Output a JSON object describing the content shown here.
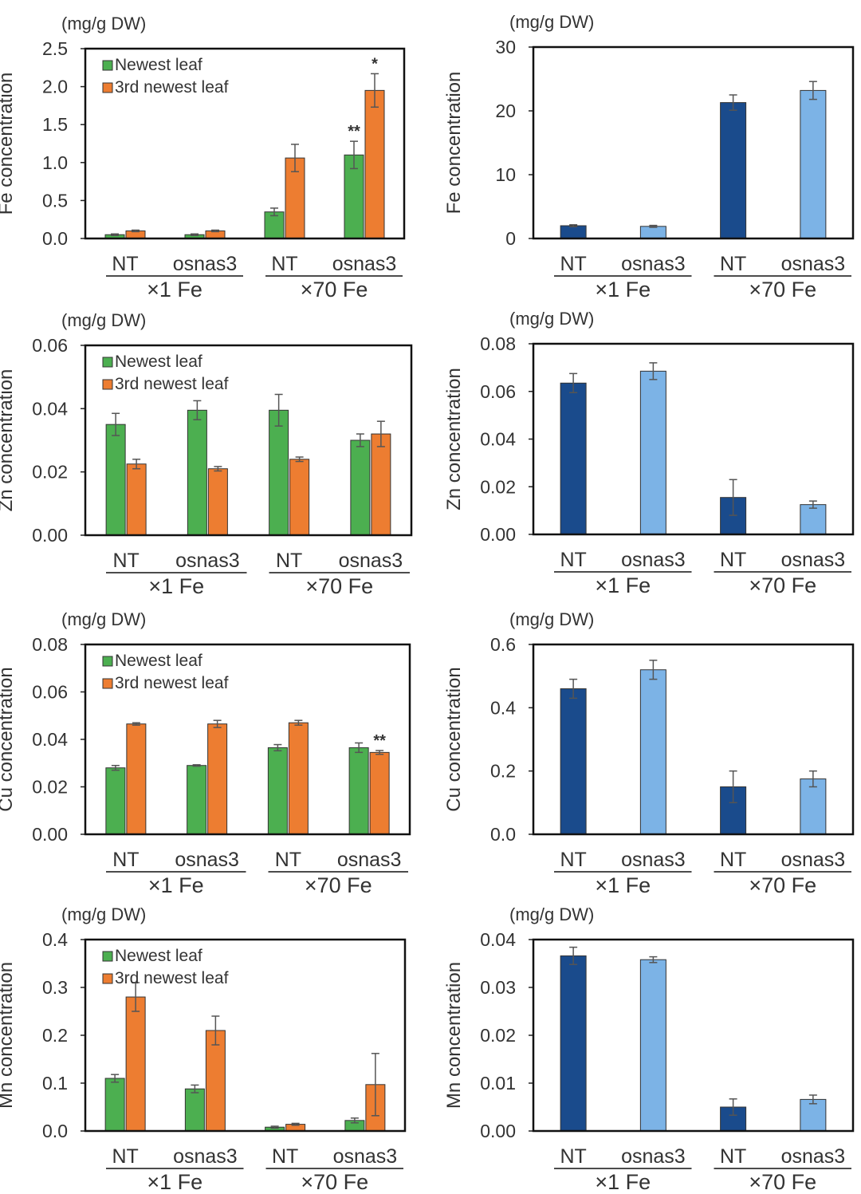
{
  "chart_data": [
    {
      "id": "fe-leaf",
      "type": "bar",
      "unit": "(mg/g DW)",
      "ylabel": "Fe concentration",
      "ylim": [
        0,
        2.5
      ],
      "yticks": [
        "0.0",
        "0.5",
        "1.0",
        "1.5",
        "2.0",
        "2.5"
      ],
      "categories": [
        "NT",
        "osnas3",
        "NT",
        "osnas3"
      ],
      "groups": [
        "×1 Fe",
        "×70 Fe"
      ],
      "legend": "top-left",
      "series": [
        {
          "name": "Newest leaf",
          "color": "#4caf50",
          "values": [
            0.05,
            0.05,
            0.35,
            1.1
          ],
          "errors": [
            0.01,
            0.01,
            0.05,
            0.18
          ],
          "marks": [
            "",
            "",
            "",
            "**"
          ]
        },
        {
          "name": "3rd newest leaf",
          "color": "#ed7d31",
          "values": [
            0.1,
            0.1,
            1.06,
            1.95
          ],
          "errors": [
            0.01,
            0.01,
            0.18,
            0.22
          ],
          "marks": [
            "",
            "",
            "",
            "*"
          ]
        }
      ]
    },
    {
      "id": "fe-other",
      "type": "bar",
      "unit": "(mg/g DW)",
      "ylabel": "Fe concentration",
      "ylim": [
        0,
        30
      ],
      "yticks": [
        "0",
        "10",
        "20",
        "30"
      ],
      "categories": [
        "NT",
        "osnas3",
        "NT",
        "osnas3"
      ],
      "groups": [
        "×1 Fe",
        "×70 Fe"
      ],
      "series": [
        {
          "colors": [
            "#1a4b8c",
            "#7cb3e6",
            "#1a4b8c",
            "#7cb3e6"
          ],
          "values": [
            2.0,
            1.9,
            21.3,
            23.2
          ],
          "errors": [
            0.15,
            0.15,
            1.2,
            1.4
          ]
        }
      ]
    },
    {
      "id": "zn-leaf",
      "type": "bar",
      "unit": "(mg/g DW)",
      "ylabel": "Zn concentration",
      "ylim": [
        0,
        0.06
      ],
      "yticks": [
        "0.00",
        "0.02",
        "0.04",
        "0.06"
      ],
      "categories": [
        "NT",
        "osnas3",
        "NT",
        "osnas3"
      ],
      "groups": [
        "×1 Fe",
        "×70 Fe"
      ],
      "legend": "top-left",
      "series": [
        {
          "name": "Newest leaf",
          "color": "#4caf50",
          "values": [
            0.035,
            0.0395,
            0.0395,
            0.03
          ],
          "errors": [
            0.0035,
            0.003,
            0.005,
            0.002
          ],
          "marks": [
            "",
            "",
            "",
            ""
          ]
        },
        {
          "name": "3rd newest leaf",
          "color": "#ed7d31",
          "values": [
            0.0225,
            0.021,
            0.024,
            0.032
          ],
          "errors": [
            0.0015,
            0.0007,
            0.0007,
            0.004
          ],
          "marks": [
            "",
            "",
            "",
            ""
          ]
        }
      ]
    },
    {
      "id": "zn-other",
      "type": "bar",
      "unit": "(mg/g DW)",
      "ylabel": "Zn concentration",
      "ylim": [
        0,
        0.08
      ],
      "yticks": [
        "0.00",
        "0.02",
        "0.04",
        "0.06",
        "0.08"
      ],
      "categories": [
        "NT",
        "osnas3",
        "NT",
        "osnas3"
      ],
      "groups": [
        "×1 Fe",
        "×70 Fe"
      ],
      "series": [
        {
          "colors": [
            "#1a4b8c",
            "#7cb3e6",
            "#1a4b8c",
            "#7cb3e6"
          ],
          "values": [
            0.0635,
            0.0685,
            0.0155,
            0.0125
          ],
          "errors": [
            0.004,
            0.0035,
            0.0075,
            0.0015
          ]
        }
      ]
    },
    {
      "id": "cu-leaf",
      "type": "bar",
      "unit": "(mg/g DW)",
      "ylabel": "Cu concentration",
      "ylim": [
        0,
        0.08
      ],
      "yticks": [
        "0.00",
        "0.02",
        "0.04",
        "0.06",
        "0.08"
      ],
      "categories": [
        "NT",
        "osnas3",
        "NT",
        "osnas3"
      ],
      "groups": [
        "×1 Fe",
        "×70 Fe"
      ],
      "legend": "top-left",
      "series": [
        {
          "name": "Newest leaf",
          "color": "#4caf50",
          "values": [
            0.028,
            0.029,
            0.0365,
            0.0365
          ],
          "errors": [
            0.001,
            0.0003,
            0.0013,
            0.002
          ],
          "marks": [
            "",
            "",
            "",
            ""
          ]
        },
        {
          "name": "3rd newest leaf",
          "color": "#ed7d31",
          "values": [
            0.0465,
            0.0465,
            0.047,
            0.0345
          ],
          "errors": [
            0.0005,
            0.0015,
            0.001,
            0.0008
          ],
          "marks": [
            "",
            "",
            "",
            "**"
          ]
        }
      ]
    },
    {
      "id": "cu-other",
      "type": "bar",
      "unit": "(mg/g DW)",
      "ylabel": "Cu concentration",
      "ylim": [
        0,
        0.6
      ],
      "yticks": [
        "0.0",
        "0.2",
        "0.4",
        "0.6"
      ],
      "categories": [
        "NT",
        "osnas3",
        "NT",
        "osnas3"
      ],
      "groups": [
        "×1 Fe",
        "×70 Fe"
      ],
      "series": [
        {
          "colors": [
            "#1a4b8c",
            "#7cb3e6",
            "#1a4b8c",
            "#7cb3e6"
          ],
          "values": [
            0.46,
            0.52,
            0.15,
            0.175
          ],
          "errors": [
            0.03,
            0.03,
            0.05,
            0.025
          ]
        }
      ]
    },
    {
      "id": "mn-leaf",
      "type": "bar",
      "unit": "(mg/g DW)",
      "ylabel": "Mn concentration",
      "ylim": [
        0,
        0.4
      ],
      "yticks": [
        "0.0",
        "0.1",
        "0.2",
        "0.3",
        "0.4"
      ],
      "categories": [
        "NT",
        "osnas3",
        "NT",
        "osnas3"
      ],
      "groups": [
        "×1 Fe",
        "×70 Fe"
      ],
      "legend": "top-left",
      "series": [
        {
          "name": "Newest leaf",
          "color": "#4caf50",
          "values": [
            0.11,
            0.088,
            0.008,
            0.022
          ],
          "errors": [
            0.008,
            0.008,
            0.002,
            0.005
          ],
          "marks": [
            "",
            "",
            "",
            ""
          ]
        },
        {
          "name": "3rd newest leaf",
          "color": "#ed7d31",
          "values": [
            0.28,
            0.21,
            0.014,
            0.097
          ],
          "errors": [
            0.03,
            0.03,
            0.002,
            0.065
          ],
          "marks": [
            "",
            "",
            "",
            ""
          ]
        }
      ]
    },
    {
      "id": "mn-other",
      "type": "bar",
      "unit": "(mg/g DW)",
      "ylabel": "Mn concentration",
      "ylim": [
        0,
        0.04
      ],
      "yticks": [
        "0.00",
        "0.01",
        "0.02",
        "0.03",
        "0.04"
      ],
      "categories": [
        "NT",
        "osnas3",
        "NT",
        "osnas3"
      ],
      "groups": [
        "×1 Fe",
        "×70 Fe"
      ],
      "series": [
        {
          "colors": [
            "#1a4b8c",
            "#7cb3e6",
            "#1a4b8c",
            "#7cb3e6"
          ],
          "values": [
            0.0366,
            0.0358,
            0.005,
            0.0066
          ],
          "errors": [
            0.0018,
            0.0006,
            0.0017,
            0.0009
          ]
        }
      ]
    }
  ]
}
